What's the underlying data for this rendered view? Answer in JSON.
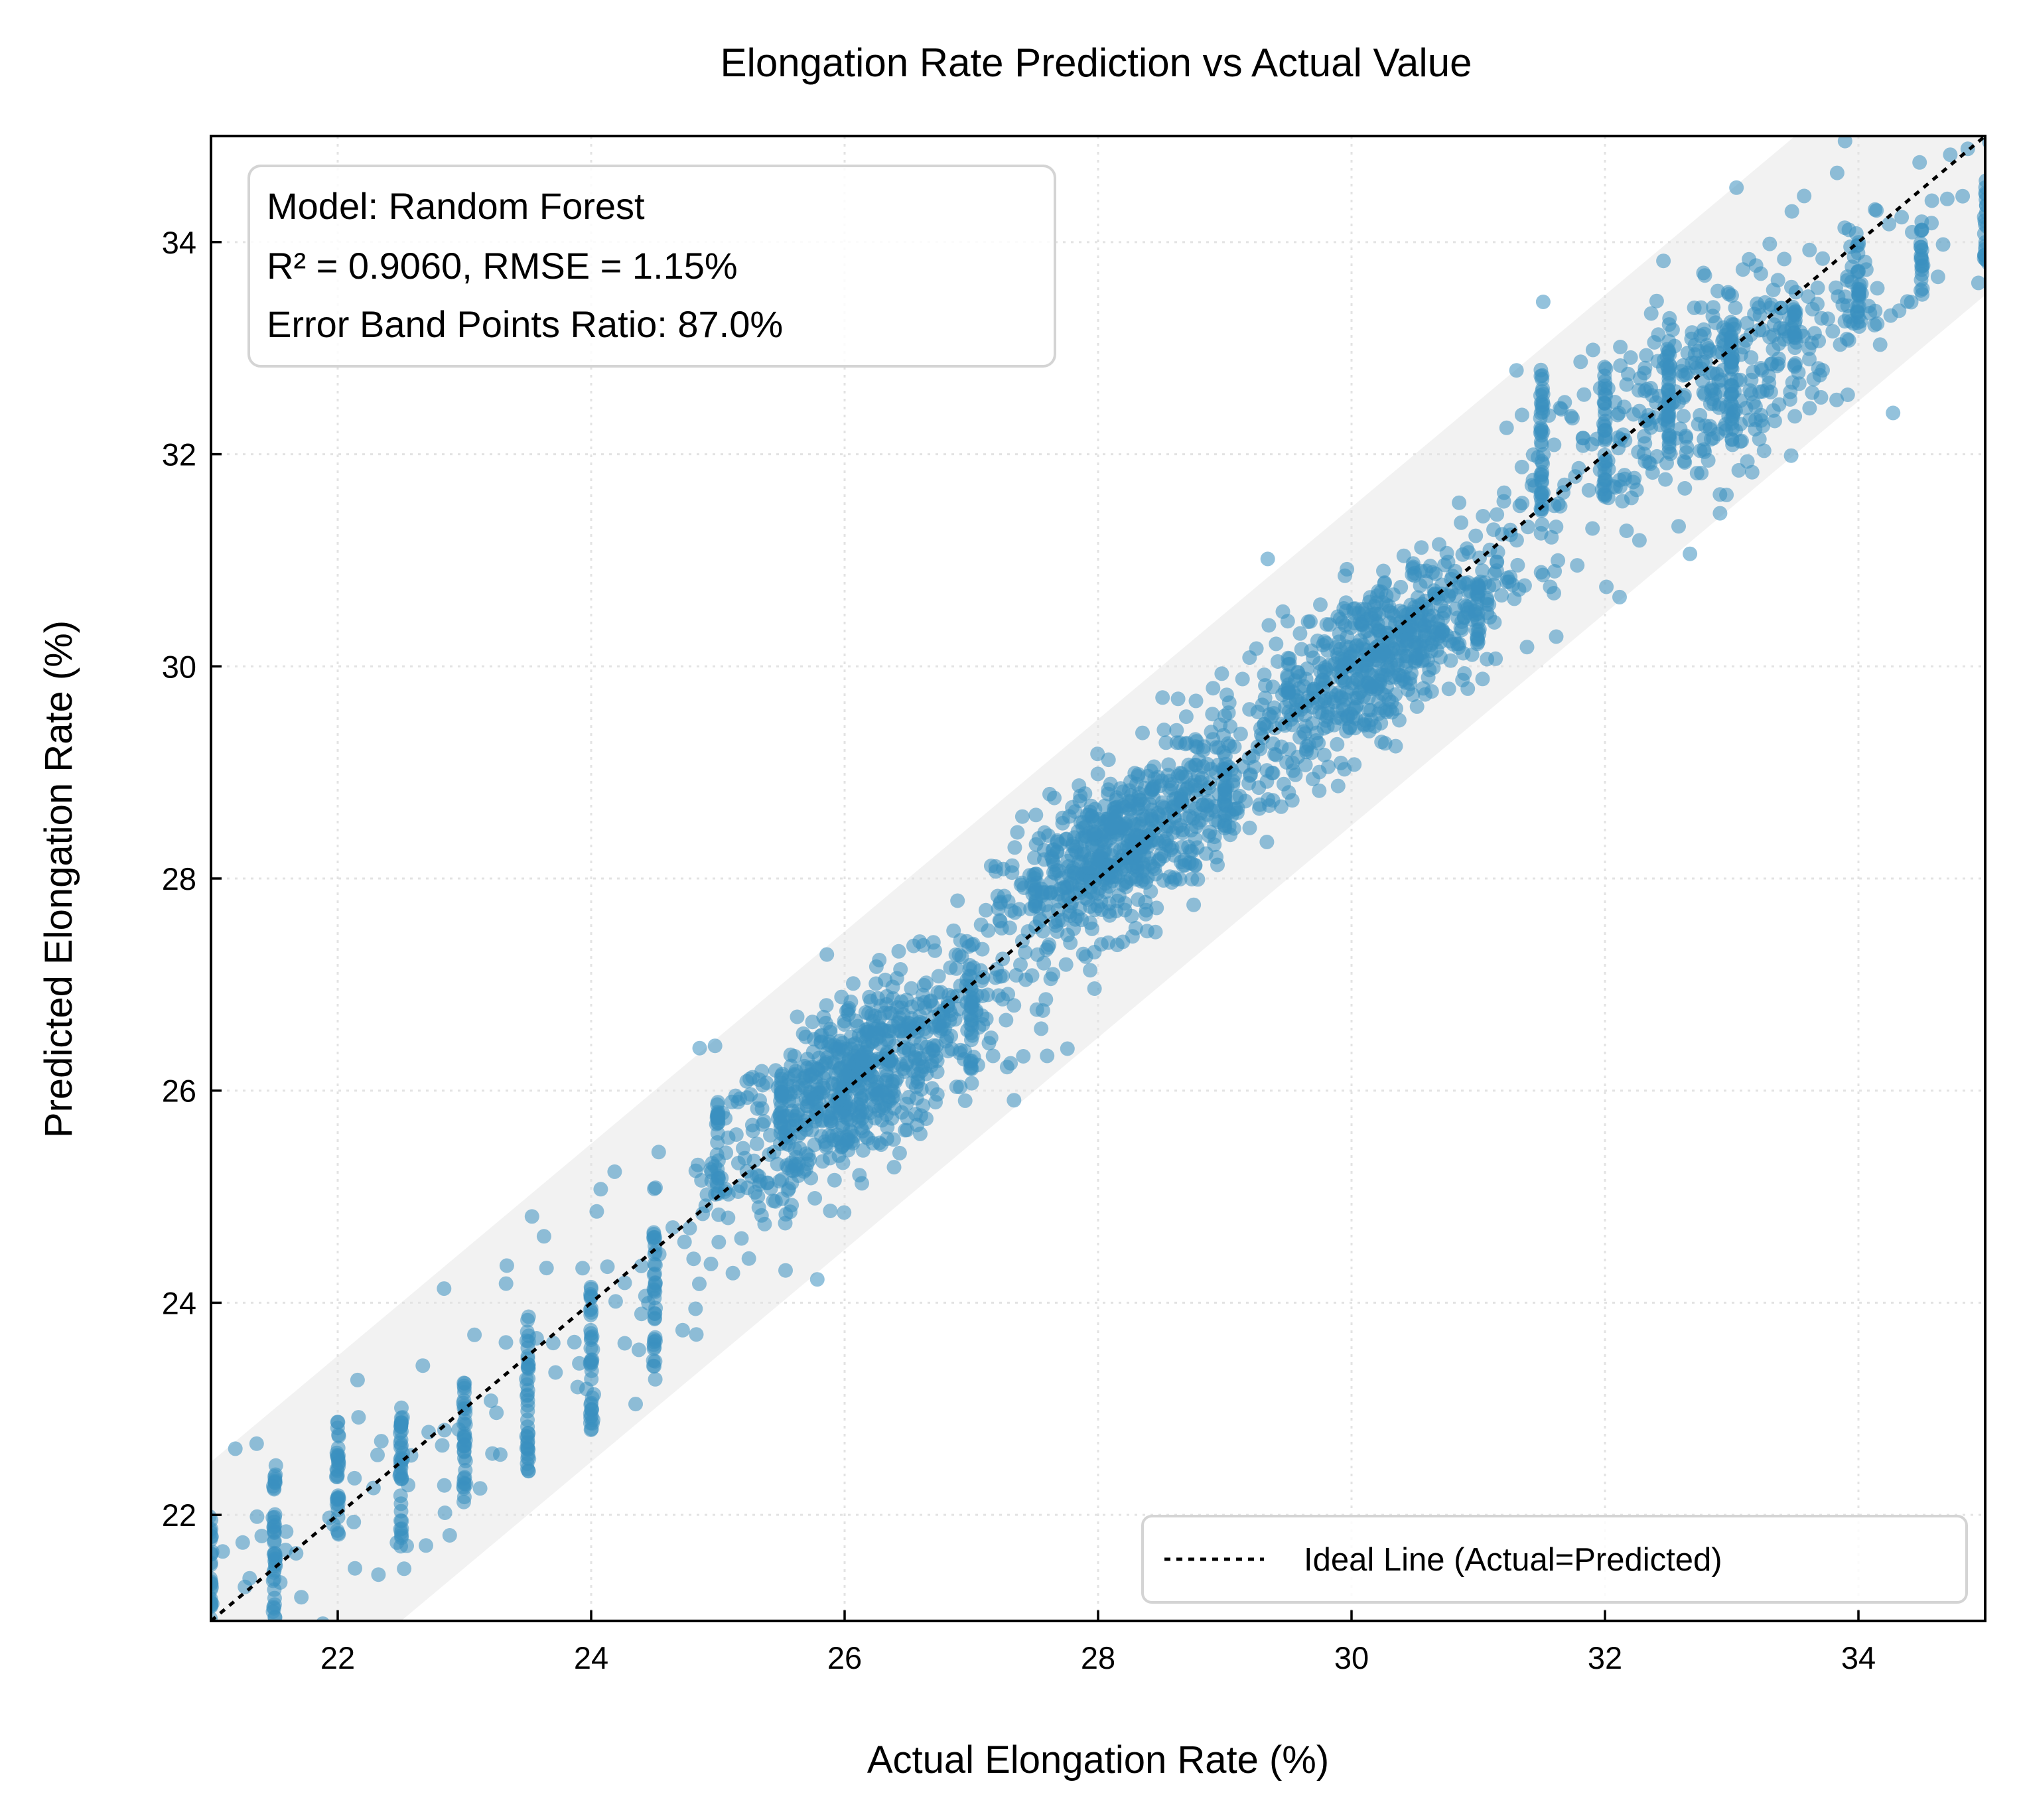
{
  "chart_data": {
    "type": "scatter",
    "title": "Elongation Rate Prediction vs Actual Value",
    "xlabel": "Actual Elongation Rate (%)",
    "ylabel": "Predicted Elongation Rate (%)",
    "xlim": [
      21,
      35
    ],
    "ylim": [
      21,
      35
    ],
    "x_ticks": [
      22,
      24,
      26,
      28,
      30,
      32,
      34
    ],
    "y_ticks": [
      22,
      24,
      26,
      28,
      30,
      32,
      34
    ],
    "x_tick_labels": [
      "22",
      "24",
      "26",
      "28",
      "30",
      "32",
      "34"
    ],
    "y_tick_labels": [
      "22",
      "24",
      "26",
      "28",
      "30",
      "32",
      "34"
    ],
    "grid": true,
    "error_band": 1.5,
    "legend": {
      "position": "bottom-right",
      "entries": [
        "Ideal Line (Actual=Predicted)"
      ]
    },
    "annotation": [
      "Model: Random Forest",
      "R² = 0.9060, RMSE = 1.15%",
      "Error Band Points Ratio: 87.0%"
    ],
    "colors": {
      "points": "#3b8fc0",
      "band": "#f2f2f2",
      "ideal_line": "#000000"
    },
    "series": [
      {
        "clusters": [
          {
            "x": 26.1,
            "y": 26.1,
            "spread": 0.55,
            "count": 700
          },
          {
            "x": 28.2,
            "y": 28.3,
            "spread": 0.5,
            "count": 650
          },
          {
            "x": 30.2,
            "y": 30.1,
            "spread": 0.5,
            "count": 600
          },
          {
            "x": 32.8,
            "y": 32.6,
            "spread": 0.65,
            "count": 350
          }
        ],
        "columns": [
          {
            "x": 21.0,
            "y_min": 21.0,
            "y_max": 22.0
          },
          {
            "x": 21.5,
            "y_min": 21.0,
            "y_max": 22.5
          },
          {
            "x": 22.0,
            "y_min": 21.8,
            "y_max": 22.9
          },
          {
            "x": 22.5,
            "y_min": 21.7,
            "y_max": 23.1
          },
          {
            "x": 23.0,
            "y_min": 22.0,
            "y_max": 23.3
          },
          {
            "x": 23.5,
            "y_min": 22.4,
            "y_max": 23.9
          },
          {
            "x": 24.0,
            "y_min": 22.8,
            "y_max": 24.2
          },
          {
            "x": 24.5,
            "y_min": 23.4,
            "y_max": 24.7
          },
          {
            "x": 25.0,
            "y_min": 25.0,
            "y_max": 25.9
          },
          {
            "x": 25.5,
            "y_min": 25.5,
            "y_max": 26.2
          },
          {
            "x": 27.0,
            "y_min": 26.2,
            "y_max": 27.0
          },
          {
            "x": 27.5,
            "y_min": 27.7,
            "y_max": 28.1
          },
          {
            "x": 29.0,
            "y_min": 28.4,
            "y_max": 29.1
          },
          {
            "x": 29.5,
            "y_min": 29.7,
            "y_max": 30.1
          },
          {
            "x": 31.0,
            "y_min": 30.2,
            "y_max": 30.9
          },
          {
            "x": 31.5,
            "y_min": 31.3,
            "y_max": 32.8
          },
          {
            "x": 32.0,
            "y_min": 31.6,
            "y_max": 32.9
          },
          {
            "x": 32.5,
            "y_min": 32.0,
            "y_max": 33.1
          },
          {
            "x": 33.0,
            "y_min": 32.1,
            "y_max": 33.3
          },
          {
            "x": 33.5,
            "y_min": 32.8,
            "y_max": 33.4
          },
          {
            "x": 34.0,
            "y_min": 33.2,
            "y_max": 34.0
          },
          {
            "x": 34.5,
            "y_min": 33.5,
            "y_max": 34.2
          },
          {
            "x": 35.0,
            "y_min": 33.8,
            "y_max": 34.6
          }
        ]
      }
    ]
  }
}
